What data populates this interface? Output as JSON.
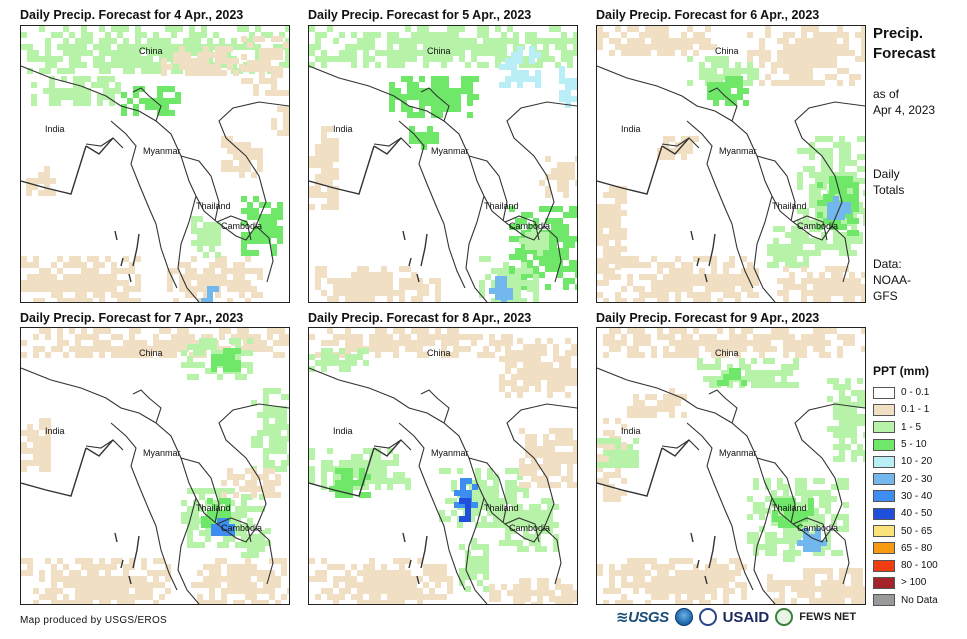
{
  "panels": [
    {
      "title": "Daily Precip. Forecast for 4 Apr., 2023"
    },
    {
      "title": "Daily Precip. Forecast for 5 Apr., 2023"
    },
    {
      "title": "Daily Precip. Forecast for 6 Apr., 2023"
    },
    {
      "title": "Daily Precip. Forecast for 7 Apr., 2023"
    },
    {
      "title": "Daily Precip. Forecast for 8 Apr., 2023"
    },
    {
      "title": "Daily Precip. Forecast for 9 Apr., 2023"
    }
  ],
  "places": {
    "china": "China",
    "india": "India",
    "myanmar": "Myanmar",
    "thailand": "Thailand",
    "cambodia": "Cambodia"
  },
  "sidebar": {
    "title_line1": "Precip.",
    "title_line2": "Forecast",
    "asof_line1": "as of",
    "asof_line2": "Apr 4, 2023",
    "daily_line1": "Daily",
    "daily_line2": "Totals",
    "data_line1": "Data:",
    "data_line2": "NOAA-",
    "data_line3": "GFS"
  },
  "legend": {
    "title": "PPT (mm)",
    "items": [
      {
        "label": "0 - 0.1",
        "color": "#ffffff"
      },
      {
        "label": "0.1 - 1",
        "color": "#f0dfc2"
      },
      {
        "label": "1 - 5",
        "color": "#b7f2a9"
      },
      {
        "label": "5 - 10",
        "color": "#6fe86a"
      },
      {
        "label": "10 - 20",
        "color": "#b9eef7"
      },
      {
        "label": "20 - 30",
        "color": "#72b8ee"
      },
      {
        "label": "30 - 40",
        "color": "#3d8ef0"
      },
      {
        "label": "40 - 50",
        "color": "#1f4fdb"
      },
      {
        "label": "50 - 65",
        "color": "#fbe27a"
      },
      {
        "label": "65 - 80",
        "color": "#f59a12"
      },
      {
        "label": "80 - 100",
        "color": "#f03d12"
      },
      {
        "label": "> 100",
        "color": "#a5232a"
      },
      {
        "label": "No Data",
        "color": "#999999"
      }
    ]
  },
  "footer": {
    "credit": "Map produced by USGS/EROS",
    "logo_usgs": "≋USGS",
    "logo_usaid": "USAID",
    "logo_fews": "FEWS NET"
  }
}
